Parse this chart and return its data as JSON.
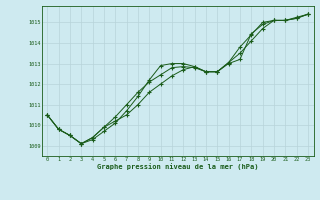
{
  "title": "Graphe pression niveau de la mer (hPa)",
  "background_color": "#ceeaf0",
  "grid_color": "#b8d4da",
  "line_color": "#1a5c1a",
  "x_min": -0.5,
  "x_max": 23.5,
  "y_min": 1008.5,
  "y_max": 1015.8,
  "yticks": [
    1009,
    1010,
    1011,
    1012,
    1013,
    1014,
    1015
  ],
  "xticks": [
    0,
    1,
    2,
    3,
    4,
    5,
    6,
    7,
    8,
    9,
    10,
    11,
    12,
    13,
    14,
    15,
    16,
    17,
    18,
    19,
    20,
    21,
    22,
    23
  ],
  "series1_x": [
    0,
    1,
    2,
    3,
    4,
    5,
    6,
    7,
    8,
    9,
    10,
    11,
    12,
    13,
    14,
    15,
    16,
    17,
    18,
    19,
    20,
    21,
    22,
    23
  ],
  "series1_y": [
    1010.5,
    1009.8,
    1009.5,
    1009.1,
    1009.4,
    1009.9,
    1010.4,
    1011.0,
    1011.6,
    1012.1,
    1012.45,
    1012.8,
    1012.85,
    1012.8,
    1012.6,
    1012.6,
    1013.05,
    1013.8,
    1014.4,
    1015.0,
    1015.1,
    1015.1,
    1015.2,
    1015.4
  ],
  "series2_x": [
    0,
    1,
    2,
    3,
    4,
    5,
    6,
    7,
    8,
    9,
    10,
    11,
    12,
    13,
    14,
    15,
    16,
    17,
    18,
    19,
    20,
    21,
    22,
    23
  ],
  "series2_y": [
    1010.5,
    1009.8,
    1009.5,
    1009.1,
    1009.4,
    1009.9,
    1010.2,
    1010.5,
    1011.0,
    1011.6,
    1012.0,
    1012.4,
    1012.7,
    1012.85,
    1012.6,
    1012.6,
    1013.05,
    1013.5,
    1014.1,
    1014.7,
    1015.1,
    1015.1,
    1015.2,
    1015.4
  ],
  "series3_x": [
    0,
    1,
    2,
    3,
    4,
    5,
    6,
    7,
    8,
    9,
    10,
    11,
    12,
    13,
    14,
    15,
    16,
    17,
    18,
    19,
    20,
    21,
    22,
    23
  ],
  "series3_y": [
    1010.5,
    1009.8,
    1009.5,
    1009.1,
    1009.3,
    1009.7,
    1010.1,
    1010.7,
    1011.4,
    1012.2,
    1012.9,
    1013.0,
    1013.0,
    1012.85,
    1012.6,
    1012.6,
    1013.0,
    1013.2,
    1014.45,
    1014.9,
    1015.1,
    1015.1,
    1015.25,
    1015.4
  ]
}
